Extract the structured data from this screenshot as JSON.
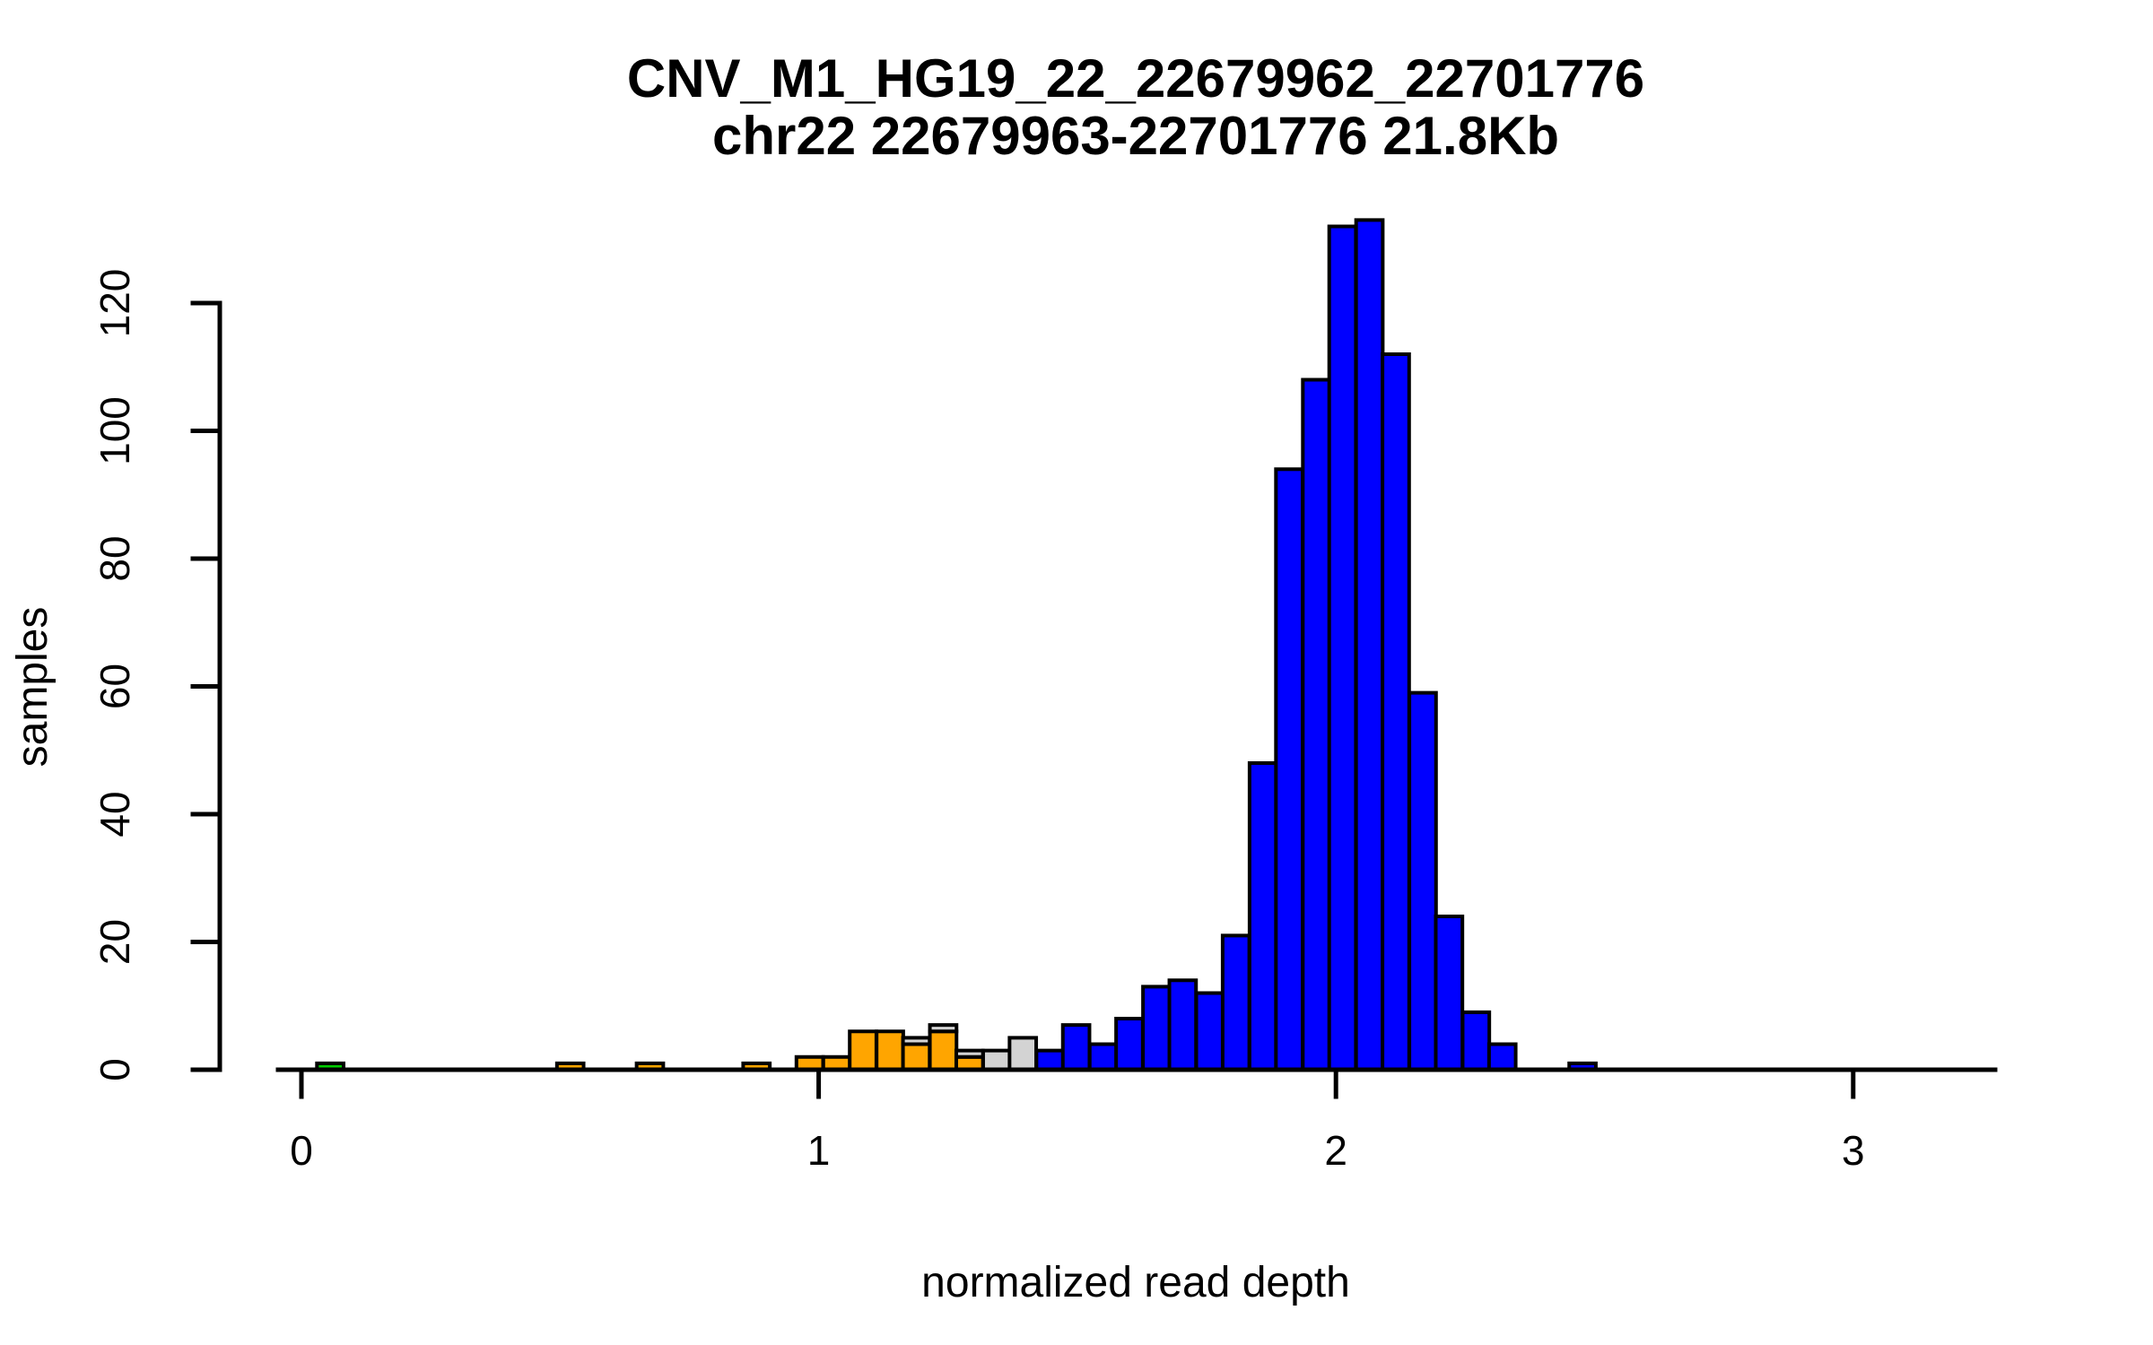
{
  "figure": {
    "background": "#ffffff",
    "title_line1": "CNV_M1_HG19_22_22679962_22701776",
    "title_line2": "chr22 22679963-22701776 21.8Kb"
  },
  "chart_data": {
    "type": "bar",
    "subtype": "stacked-histogram",
    "title": "CNV_M1_HG19_22_22679962_22701776",
    "subtitle": "chr22 22679963-22701776 21.8Kb",
    "xlabel": "normalized read depth",
    "ylabel": "samples",
    "x_ticks": [
      0,
      1,
      2,
      3
    ],
    "y_ticks": [
      0,
      20,
      40,
      60,
      80,
      100,
      120
    ],
    "xlim": [
      -0.05,
      3.28
    ],
    "ylim": [
      0,
      134
    ],
    "grid": false,
    "legend_position": "none",
    "bin_width": 0.0515,
    "colors": {
      "blue": "#0000ff",
      "orange": "#ffa500",
      "gray": "#d3d3d3",
      "green": "#00cd00",
      "stroke": "#000000"
    },
    "bars": [
      {
        "x0": 0.03,
        "segments": [
          [
            "green",
            1
          ]
        ]
      },
      {
        "x0": 0.494,
        "segments": [
          [
            "orange",
            1
          ]
        ]
      },
      {
        "x0": 0.648,
        "segments": [
          [
            "orange",
            1
          ]
        ]
      },
      {
        "x0": 0.854,
        "segments": [
          [
            "orange",
            1
          ]
        ]
      },
      {
        "x0": 0.957,
        "segments": [
          [
            "orange",
            2
          ]
        ]
      },
      {
        "x0": 1.009,
        "segments": [
          [
            "orange",
            2
          ]
        ]
      },
      {
        "x0": 1.06,
        "segments": [
          [
            "orange",
            6
          ]
        ]
      },
      {
        "x0": 1.112,
        "segments": [
          [
            "orange",
            6
          ]
        ]
      },
      {
        "x0": 1.163,
        "segments": [
          [
            "orange",
            4
          ],
          [
            "gray",
            1
          ]
        ]
      },
      {
        "x0": 1.215,
        "segments": [
          [
            "orange",
            6
          ],
          [
            "gray",
            1
          ]
        ]
      },
      {
        "x0": 1.266,
        "segments": [
          [
            "orange",
            2
          ],
          [
            "gray",
            1
          ]
        ]
      },
      {
        "x0": 1.318,
        "segments": [
          [
            "gray",
            3
          ]
        ]
      },
      {
        "x0": 1.369,
        "segments": [
          [
            "gray",
            5
          ]
        ]
      },
      {
        "x0": 1.421,
        "segments": [
          [
            "blue",
            3
          ]
        ]
      },
      {
        "x0": 1.472,
        "segments": [
          [
            "blue",
            7
          ]
        ]
      },
      {
        "x0": 1.524,
        "segments": [
          [
            "blue",
            4
          ]
        ]
      },
      {
        "x0": 1.575,
        "segments": [
          [
            "blue",
            8
          ]
        ]
      },
      {
        "x0": 1.627,
        "segments": [
          [
            "blue",
            13
          ]
        ]
      },
      {
        "x0": 1.678,
        "segments": [
          [
            "blue",
            14
          ]
        ]
      },
      {
        "x0": 1.73,
        "segments": [
          [
            "blue",
            12
          ]
        ]
      },
      {
        "x0": 1.781,
        "segments": [
          [
            "blue",
            21
          ]
        ]
      },
      {
        "x0": 1.833,
        "segments": [
          [
            "blue",
            48
          ]
        ]
      },
      {
        "x0": 1.884,
        "segments": [
          [
            "blue",
            94
          ]
        ]
      },
      {
        "x0": 1.936,
        "segments": [
          [
            "blue",
            108
          ]
        ]
      },
      {
        "x0": 1.987,
        "segments": [
          [
            "blue",
            132
          ]
        ]
      },
      {
        "x0": 2.039,
        "segments": [
          [
            "blue",
            133
          ]
        ]
      },
      {
        "x0": 2.09,
        "segments": [
          [
            "blue",
            112
          ]
        ]
      },
      {
        "x0": 2.142,
        "segments": [
          [
            "blue",
            59
          ]
        ]
      },
      {
        "x0": 2.193,
        "segments": [
          [
            "blue",
            24
          ]
        ]
      },
      {
        "x0": 2.245,
        "segments": [
          [
            "blue",
            9
          ]
        ]
      },
      {
        "x0": 2.296,
        "segments": [
          [
            "blue",
            4
          ]
        ]
      },
      {
        "x0": 2.451,
        "segments": [
          [
            "blue",
            1
          ]
        ]
      }
    ]
  }
}
